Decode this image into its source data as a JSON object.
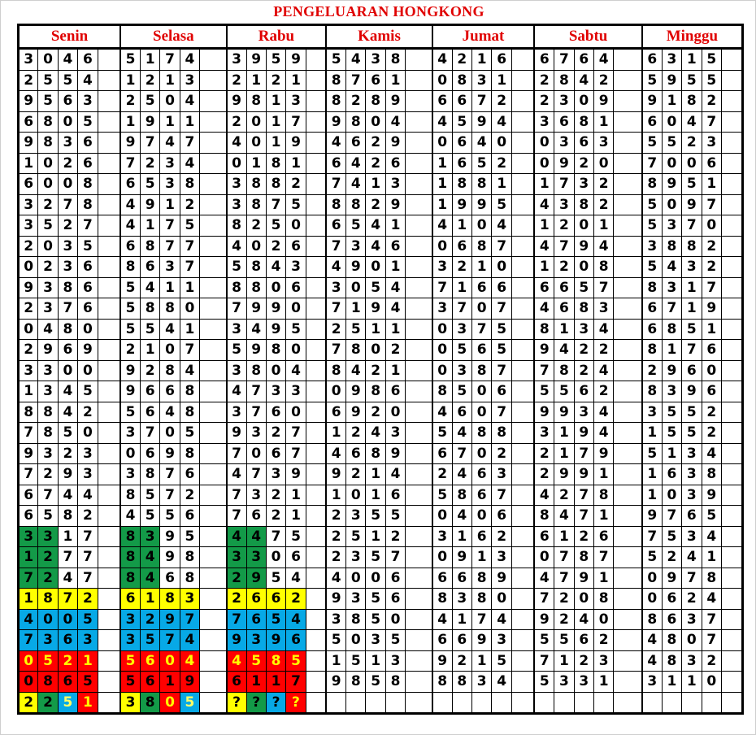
{
  "title": "PENGELUARAN HONGKONG",
  "palette": {
    "w": {
      "bg": "#ffffff",
      "fg": "#000000"
    },
    "g": {
      "bg": "#139a48",
      "fg": "#000000"
    },
    "y": {
      "bg": "#ffff00",
      "fg": "#000000"
    },
    "b": {
      "bg": "#07a9e6",
      "fg": "#000000"
    },
    "by": {
      "bg": "#07a9e6",
      "fg": "#ffff66"
    },
    "r": {
      "bg": "#ff0000",
      "fg": "#000000"
    },
    "ry": {
      "bg": "#ff0000",
      "fg": "#ffff00"
    }
  },
  "days": [
    {
      "name": "Senin",
      "rows": [
        "3046",
        "2554",
        "9563",
        "6805",
        "9836",
        "1026",
        "6008",
        "3278",
        "3527",
        "2035",
        "0236",
        "9386",
        "2376",
        "0480",
        "2969",
        "3300",
        "1345",
        "8842",
        "7850",
        "9323",
        "7293",
        "6744",
        "6582",
        "3317",
        "1277",
        "7247",
        "1872",
        "4005",
        "7363",
        "0521",
        "0865",
        "2251"
      ],
      "styles": {
        "23": [
          "g",
          "g",
          "w",
          "w"
        ],
        "24": [
          "g",
          "g",
          "w",
          "w"
        ],
        "25": [
          "g",
          "g",
          "w",
          "w"
        ],
        "26": [
          "y",
          "y",
          "y",
          "y"
        ],
        "27": [
          "b",
          "b",
          "b",
          "b"
        ],
        "28": [
          "b",
          "b",
          "b",
          "b"
        ],
        "29": [
          "ry",
          "ry",
          "ry",
          "ry"
        ],
        "30": [
          "r",
          "r",
          "r",
          "r"
        ],
        "31": [
          "y",
          "g",
          "by",
          "ry"
        ]
      }
    },
    {
      "name": "Selasa",
      "rows": [
        "5174",
        "1213",
        "2504",
        "1911",
        "9747",
        "7234",
        "6538",
        "4912",
        "4175",
        "6877",
        "8637",
        "5411",
        "5880",
        "5541",
        "2107",
        "9284",
        "9668",
        "5648",
        "3705",
        "0698",
        "3876",
        "8572",
        "4556",
        "8395",
        "8498",
        "8468",
        "6183",
        "3297",
        "3574",
        "5604",
        "5619",
        "3805"
      ],
      "styles": {
        "23": [
          "g",
          "g",
          "w",
          "w"
        ],
        "24": [
          "g",
          "g",
          "w",
          "w"
        ],
        "25": [
          "g",
          "g",
          "w",
          "w"
        ],
        "26": [
          "y",
          "y",
          "y",
          "y"
        ],
        "27": [
          "b",
          "b",
          "b",
          "b"
        ],
        "28": [
          "b",
          "b",
          "b",
          "b"
        ],
        "29": [
          "ry",
          "ry",
          "ry",
          "ry"
        ],
        "30": [
          "r",
          "r",
          "r",
          "r"
        ],
        "31": [
          "y",
          "g",
          "ry",
          "by"
        ]
      }
    },
    {
      "name": "Rabu",
      "rows": [
        "3959",
        "2121",
        "9813",
        "2017",
        "4019",
        "0181",
        "3882",
        "3875",
        "8250",
        "4026",
        "5843",
        "8806",
        "7990",
        "3495",
        "5980",
        "3804",
        "4733",
        "3760",
        "9327",
        "7067",
        "4739",
        "7321",
        "7621",
        "4475",
        "3306",
        "2954",
        "2662",
        "7654",
        "9396",
        "4585",
        "6117",
        "????"
      ],
      "styles": {
        "23": [
          "g",
          "g",
          "w",
          "w"
        ],
        "24": [
          "g",
          "g",
          "w",
          "w"
        ],
        "25": [
          "g",
          "g",
          "w",
          "w"
        ],
        "26": [
          "y",
          "y",
          "y",
          "y"
        ],
        "27": [
          "b",
          "b",
          "b",
          "b"
        ],
        "28": [
          "b",
          "b",
          "b",
          "b"
        ],
        "29": [
          "ry",
          "ry",
          "ry",
          "ry"
        ],
        "30": [
          "r",
          "r",
          "r",
          "r"
        ],
        "31": [
          "y",
          "g",
          "b",
          "ry"
        ]
      }
    },
    {
      "name": "Kamis",
      "rows": [
        "5438",
        "8761",
        "8289",
        "9804",
        "4629",
        "6426",
        "7413",
        "8829",
        "6541",
        "7346",
        "4901",
        "3054",
        "7194",
        "2511",
        "7802",
        "8421",
        "0986",
        "6920",
        "1243",
        "4689",
        "9214",
        "1016",
        "2355",
        "2512",
        "2357",
        "4006",
        "9356",
        "3850",
        "5035",
        "1513",
        "9858",
        ""
      ],
      "styles": {}
    },
    {
      "name": "Jumat",
      "rows": [
        "4216",
        "0831",
        "6672",
        "4594",
        "0640",
        "1652",
        "1881",
        "1995",
        "4104",
        "0687",
        "3210",
        "7166",
        "3707",
        "0375",
        "0565",
        "0387",
        "8506",
        "4607",
        "5488",
        "6702",
        "2463",
        "5867",
        "0406",
        "3162",
        "0913",
        "6689",
        "8380",
        "4174",
        "6693",
        "9215",
        "8834",
        ""
      ],
      "styles": {}
    },
    {
      "name": "Sabtu",
      "rows": [
        "6764",
        "2842",
        "2309",
        "3681",
        "0363",
        "0920",
        "1732",
        "4382",
        "1201",
        "4794",
        "1208",
        "6657",
        "4683",
        "8134",
        "9422",
        "7824",
        "5562",
        "9934",
        "3194",
        "2179",
        "2991",
        "4278",
        "8471",
        "6126",
        "0787",
        "4791",
        "7208",
        "9240",
        "5562",
        "7123",
        "5331",
        ""
      ],
      "styles": {}
    },
    {
      "name": "Minggu",
      "rows": [
        "6315",
        "5955",
        "9182",
        "6047",
        "5523",
        "7006",
        "8951",
        "5097",
        "5370",
        "3882",
        "5432",
        "8317",
        "6719",
        "6851",
        "8176",
        "2960",
        "8396",
        "3552",
        "1552",
        "5134",
        "1638",
        "1039",
        "9765",
        "7534",
        "5241",
        "0978",
        "0624",
        "8637",
        "4807",
        "4832",
        "3110",
        ""
      ],
      "styles": {}
    }
  ]
}
